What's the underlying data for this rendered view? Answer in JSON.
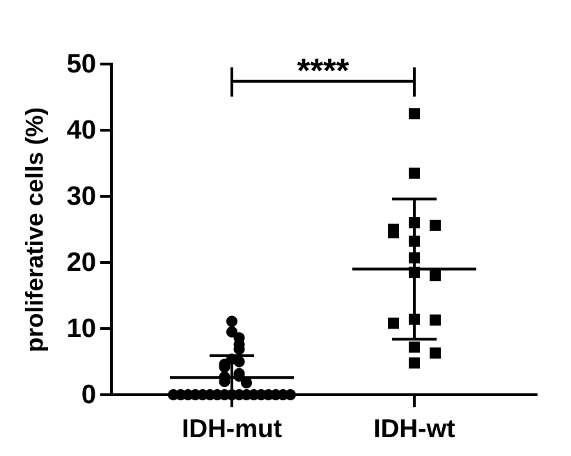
{
  "chart_data": {
    "type": "scatter",
    "y_label": "proliferative cells (%)",
    "categories": [
      "IDH-mut",
      "IDH-wt"
    ],
    "ylim": [
      0,
      50
    ],
    "yticks": [
      0,
      10,
      20,
      30,
      40,
      50
    ],
    "color": "#000000",
    "series": [
      {
        "marker": "circle",
        "mean": 2.6,
        "sd": 3.3,
        "values": [
          11.1,
          9.5,
          8.6,
          7.6,
          6.9,
          5.4,
          5.0,
          4.6,
          4.2,
          3.2,
          2.8,
          2.7,
          2.0,
          1.8,
          0,
          0,
          0,
          0,
          0,
          0,
          0,
          0,
          0,
          0,
          0,
          0,
          0,
          0,
          0,
          0,
          0
        ]
      },
      {
        "marker": "square",
        "mean": 19.0,
        "sd": 10.6,
        "values": [
          42.5,
          33.5,
          26.0,
          25.6,
          25.0,
          24.5,
          23.2,
          20.7,
          18.5,
          18.0,
          11.4,
          11.3,
          10.8,
          7.2,
          6.3,
          4.8
        ]
      }
    ],
    "significance": {
      "label": "****",
      "between": [
        0,
        1
      ],
      "y": 47.4
    }
  }
}
